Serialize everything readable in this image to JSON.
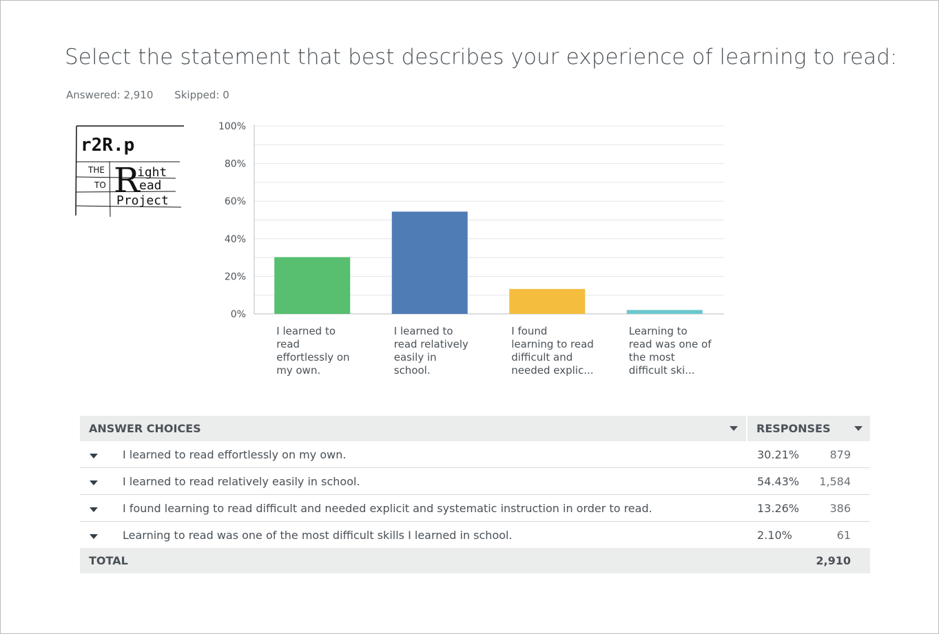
{
  "question": {
    "title": "Select the statement that best describes your experience of learning to read:",
    "answered_label": "Answered: 2,910",
    "skipped_label": "Skipped: 0"
  },
  "logo": {
    "line1": "r2R.p",
    "the": "THE",
    "to": "TO",
    "big_r": "R",
    "ight": "ight",
    "ead": "ead",
    "project": "Project"
  },
  "chart_data": {
    "type": "bar",
    "categories": [
      "I learned to read effortlessly on my own.",
      "I learned to read relatively easily in school.",
      "I found learning to read difficult and needed explic...",
      "Learning to read was one of the most difficult ski..."
    ],
    "category_display": [
      [
        "I learned to",
        "read",
        "effortlessly on",
        "my own."
      ],
      [
        "I learned to",
        "read relatively",
        "easily in",
        "school."
      ],
      [
        "I found",
        "learning to read",
        "difficult and",
        "needed explic..."
      ],
      [
        "Learning to",
        "read was one of",
        "the most",
        "difficult ski..."
      ]
    ],
    "values": [
      30.21,
      54.43,
      13.26,
      2.1
    ],
    "colors": [
      "#57bf6f",
      "#507cb6",
      "#f5bd3e",
      "#6bc8cd"
    ],
    "yticks": [
      "0%",
      "20%",
      "40%",
      "60%",
      "80%",
      "100%"
    ],
    "ylim": [
      0,
      100
    ],
    "grid": true,
    "legend": "none"
  },
  "table": {
    "header_choices": "ANSWER CHOICES",
    "header_responses": "RESPONSES",
    "rows": [
      {
        "answer": "I learned to read effortlessly on my own.",
        "percent": "30.21%",
        "count": "879"
      },
      {
        "answer": "I learned to read relatively easily in school.",
        "percent": "54.43%",
        "count": "1,584"
      },
      {
        "answer": "I found learning to read difficult and needed explicit and systematic instruction in order to read.",
        "percent": "13.26%",
        "count": "386"
      },
      {
        "answer": "Learning to read was one of the most difficult skills I learned in school.",
        "percent": "2.10%",
        "count": "61"
      }
    ],
    "total_label": "TOTAL",
    "total_value": "2,910"
  }
}
